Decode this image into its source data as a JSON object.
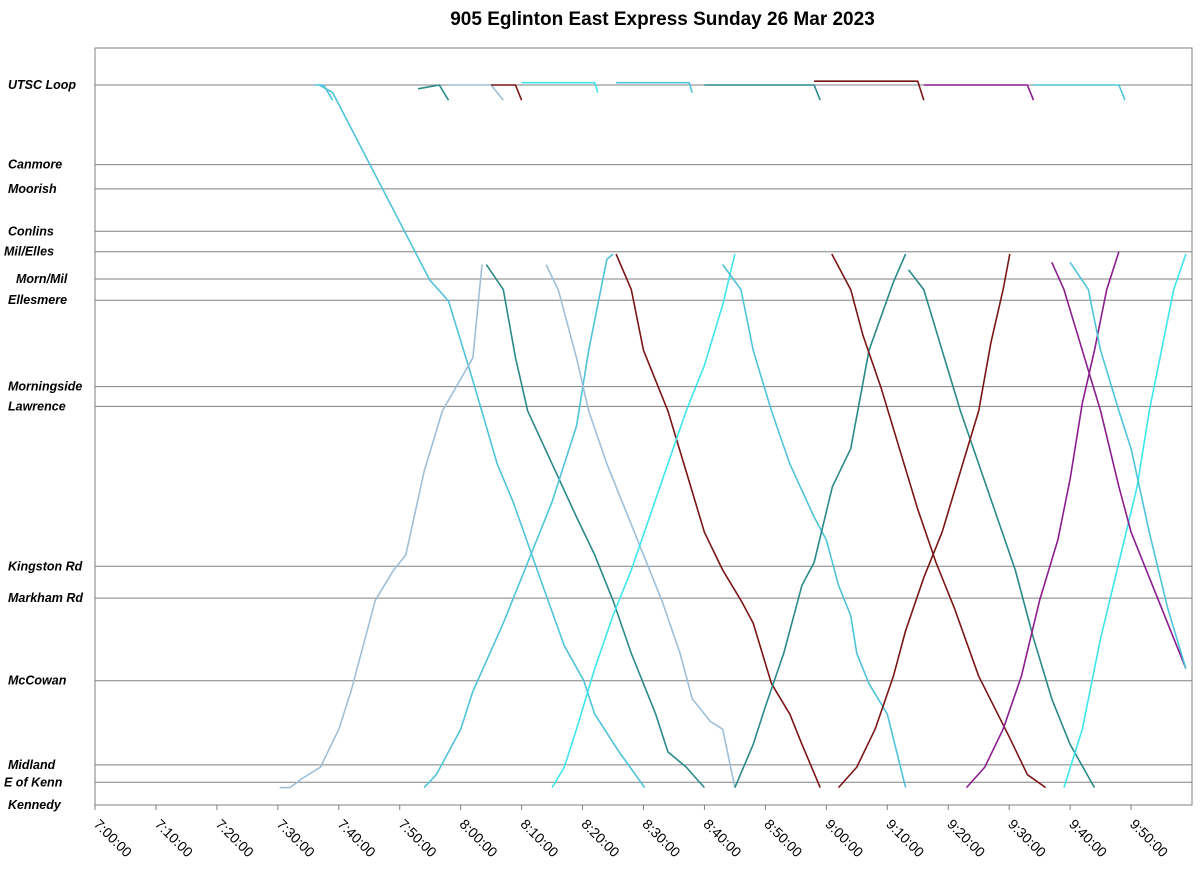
{
  "chart_data": {
    "type": "line",
    "title": "905 Eglinton East Express Sunday 26 Mar 2023",
    "xlabel": "",
    "ylabel": "",
    "x_unit": "time of day (minutes since midnight)",
    "xlim": [
      420,
      600
    ],
    "x_ticks": [
      "7:00:00",
      "7:10:00",
      "7:20:00",
      "7:30:00",
      "7:40:00",
      "7:50:00",
      "8:00:00",
      "8:10:00",
      "8:20:00",
      "8:30:00",
      "8:40:00",
      "8:50:00",
      "9:00:00",
      "9:10:00",
      "9:20:00",
      "9:30:00",
      "9:40:00",
      "9:50:00"
    ],
    "stops": [
      {
        "name": "UTSC Loop",
        "pos": 0.95
      },
      {
        "name": "Canmore",
        "pos": 0.845
      },
      {
        "name": "Moorish",
        "pos": 0.813
      },
      {
        "name": "Conlins",
        "pos": 0.757
      },
      {
        "name": "Mil/Elles",
        "pos": 0.73
      },
      {
        "name": "Morn/Mil",
        "pos": 0.694
      },
      {
        "name": "Ellesmere",
        "pos": 0.666
      },
      {
        "name": "Morningside",
        "pos": 0.552
      },
      {
        "name": "Lawrence",
        "pos": 0.526
      },
      {
        "name": "Kingston Rd",
        "pos": 0.315
      },
      {
        "name": "Markham Rd",
        "pos": 0.273
      },
      {
        "name": "McCowan",
        "pos": 0.164
      },
      {
        "name": "Midland",
        "pos": 0.053
      },
      {
        "name": "E of Kenn",
        "pos": 0.03
      },
      {
        "name": "Kennedy",
        "pos": 0.0
      }
    ],
    "grid": true,
    "legend": "none",
    "series": [
      {
        "color": "#4fc4d9",
        "points": [
          [
            456.8,
            0.95
          ],
          [
            459,
            0.94
          ],
          [
            474.9,
            0.693
          ],
          [
            478,
            0.665
          ],
          [
            482,
            0.56
          ],
          [
            486,
            0.45
          ],
          [
            488.6,
            0.4
          ],
          [
            493,
            0.3
          ],
          [
            497,
            0.21
          ],
          [
            500.2,
            0.164
          ],
          [
            502,
            0.12
          ],
          [
            506,
            0.07
          ],
          [
            510.2,
            0.023
          ]
        ]
      },
      {
        "name": "",
        "color": "#9fbfd8",
        "points": [
          [
            450.3,
            0.023
          ],
          [
            452,
            0.023
          ],
          [
            454,
            0.035
          ],
          [
            457,
            0.05
          ],
          [
            460,
            0.1
          ],
          [
            462,
            0.15
          ],
          [
            466,
            0.27
          ],
          [
            469,
            0.31
          ],
          [
            471,
            0.33
          ],
          [
            474,
            0.44
          ],
          [
            477,
            0.52
          ],
          [
            482,
            0.59
          ],
          [
            483.5,
            0.713
          ]
        ]
      },
      {
        "color": "#2a8a8a",
        "points": [
          [
            484.2,
            0.713
          ],
          [
            487,
            0.68
          ],
          [
            489,
            0.59
          ],
          [
            491,
            0.52
          ],
          [
            495,
            0.45
          ],
          [
            499,
            0.38
          ],
          [
            502,
            0.33
          ],
          [
            505,
            0.27
          ],
          [
            508,
            0.2
          ],
          [
            511,
            0.14
          ],
          [
            512,
            0.12
          ],
          [
            514,
            0.07
          ],
          [
            517,
            0.05
          ],
          [
            520,
            0.023
          ]
        ]
      },
      {
        "color": "#4fc4d9",
        "points": [
          [
            474,
            0.023
          ],
          [
            476,
            0.04
          ],
          [
            480,
            0.1
          ],
          [
            482,
            0.15
          ],
          [
            487,
            0.24
          ],
          [
            489,
            0.28
          ],
          [
            491,
            0.32
          ],
          [
            495,
            0.4
          ],
          [
            497,
            0.45
          ],
          [
            499,
            0.5
          ],
          [
            501,
            0.6
          ],
          [
            503,
            0.68
          ],
          [
            504,
            0.72
          ],
          [
            505,
            0.727
          ]
        ]
      },
      {
        "color": "#9fbfd8",
        "points": [
          [
            494,
            0.713
          ],
          [
            496,
            0.68
          ],
          [
            499,
            0.59
          ],
          [
            501,
            0.52
          ],
          [
            504,
            0.45
          ],
          [
            508,
            0.37
          ],
          [
            511,
            0.31
          ],
          [
            513,
            0.27
          ],
          [
            516,
            0.2
          ],
          [
            518,
            0.14
          ],
          [
            521,
            0.11
          ],
          [
            523,
            0.1
          ],
          [
            525,
            0.023
          ]
        ]
      },
      {
        "color": "#7b1515",
        "points": [
          [
            505.5,
            0.727
          ],
          [
            508,
            0.68
          ],
          [
            510,
            0.6
          ],
          [
            514,
            0.52
          ],
          [
            517,
            0.44
          ],
          [
            520,
            0.36
          ],
          [
            523,
            0.31
          ],
          [
            526,
            0.27
          ],
          [
            528,
            0.24
          ],
          [
            531,
            0.16
          ],
          [
            534,
            0.12
          ],
          [
            536,
            0.08
          ],
          [
            539,
            0.023
          ]
        ]
      },
      {
        "color": "#3ee6ec",
        "points": [
          [
            495,
            0.023
          ],
          [
            497,
            0.05
          ],
          [
            499,
            0.1
          ],
          [
            502,
            0.18
          ],
          [
            505,
            0.25
          ],
          [
            508,
            0.31
          ],
          [
            511,
            0.38
          ],
          [
            514,
            0.45
          ],
          [
            517,
            0.52
          ],
          [
            520,
            0.58
          ],
          [
            523,
            0.66
          ],
          [
            525,
            0.727
          ]
        ]
      },
      {
        "color": "#4fc4d9",
        "points": [
          [
            523,
            0.713
          ],
          [
            526,
            0.68
          ],
          [
            528,
            0.6
          ],
          [
            531,
            0.52
          ],
          [
            534,
            0.45
          ],
          [
            538,
            0.38
          ],
          [
            540,
            0.35
          ],
          [
            542,
            0.29
          ],
          [
            544,
            0.25
          ],
          [
            545,
            0.2
          ],
          [
            547,
            0.16
          ],
          [
            550,
            0.12
          ],
          [
            553,
            0.023
          ]
        ]
      },
      {
        "color": "#2a8a8a",
        "points": [
          [
            525,
            0.023
          ],
          [
            528,
            0.08
          ],
          [
            530,
            0.13
          ],
          [
            533,
            0.2
          ],
          [
            536,
            0.29
          ],
          [
            538,
            0.32
          ],
          [
            541,
            0.42
          ],
          [
            544,
            0.47
          ],
          [
            547,
            0.6
          ],
          [
            551,
            0.69
          ],
          [
            553,
            0.727
          ]
        ]
      },
      {
        "color": "#7b1515",
        "points": [
          [
            540.9,
            0.727
          ],
          [
            544,
            0.68
          ],
          [
            546,
            0.62
          ],
          [
            549,
            0.55
          ],
          [
            552,
            0.47
          ],
          [
            555,
            0.39
          ],
          [
            558,
            0.32
          ],
          [
            561,
            0.26
          ],
          [
            565,
            0.17
          ],
          [
            570,
            0.09
          ],
          [
            573,
            0.04
          ],
          [
            576,
            0.023
          ]
        ]
      },
      {
        "color": "#2a8a8a",
        "points": [
          [
            553.5,
            0.706
          ],
          [
            556,
            0.68
          ],
          [
            559,
            0.6
          ],
          [
            562,
            0.52
          ],
          [
            565,
            0.45
          ],
          [
            568,
            0.38
          ],
          [
            571,
            0.31
          ],
          [
            574,
            0.22
          ],
          [
            577,
            0.14
          ],
          [
            580,
            0.08
          ],
          [
            584,
            0.023
          ]
        ]
      },
      {
        "color": "#7b1515",
        "points": [
          [
            542,
            0.023
          ],
          [
            545,
            0.05
          ],
          [
            548,
            0.1
          ],
          [
            551,
            0.17
          ],
          [
            553,
            0.23
          ],
          [
            556,
            0.3
          ],
          [
            559,
            0.36
          ],
          [
            562,
            0.44
          ],
          [
            565,
            0.52
          ],
          [
            567,
            0.61
          ],
          [
            569,
            0.68
          ],
          [
            570.1,
            0.727
          ]
        ]
      },
      {
        "color": "#8b1d8f",
        "points": [
          [
            563,
            0.023
          ],
          [
            566,
            0.05
          ],
          [
            569,
            0.1
          ],
          [
            572,
            0.17
          ],
          [
            575,
            0.27
          ],
          [
            578,
            0.35
          ],
          [
            580,
            0.43
          ],
          [
            582,
            0.53
          ],
          [
            584,
            0.6
          ],
          [
            586,
            0.68
          ],
          [
            588,
            0.73
          ]
        ]
      },
      {
        "color": "#3ee6ec",
        "points": [
          [
            579,
            0.023
          ],
          [
            582,
            0.1
          ],
          [
            585,
            0.22
          ],
          [
            588,
            0.32
          ],
          [
            591,
            0.42
          ],
          [
            593,
            0.52
          ],
          [
            595,
            0.6
          ],
          [
            597,
            0.68
          ],
          [
            599,
            0.727
          ]
        ]
      },
      {
        "color": "#8b1d8f",
        "points": [
          [
            577,
            0.716
          ],
          [
            579,
            0.68
          ],
          [
            582,
            0.6
          ],
          [
            585,
            0.52
          ],
          [
            588,
            0.42
          ],
          [
            590,
            0.36
          ],
          [
            593,
            0.3
          ],
          [
            596,
            0.24
          ],
          [
            599,
            0.18
          ]
        ]
      },
      {
        "color": "#4fc4d9",
        "points": [
          [
            580,
            0.716
          ],
          [
            583,
            0.68
          ],
          [
            585,
            0.6
          ],
          [
            588,
            0.52
          ],
          [
            590,
            0.47
          ],
          [
            593,
            0.36
          ],
          [
            596,
            0.26
          ],
          [
            599,
            0.18
          ]
        ]
      }
    ],
    "markers": [
      {
        "color": "#4fc4d9",
        "points": [
          [
            456,
            0.95
          ],
          [
            457.5,
            0.95
          ],
          [
            459,
            0.93
          ]
        ]
      },
      {
        "color": "#2a8a8a",
        "points": [
          [
            473,
            0.945
          ],
          [
            476.5,
            0.95
          ],
          [
            478,
            0.93
          ]
        ]
      },
      {
        "color": "#9fbfd8",
        "points": [
          [
            478,
            0.95
          ],
          [
            485,
            0.95
          ],
          [
            487,
            0.93
          ]
        ]
      },
      {
        "color": "#7b1515",
        "points": [
          [
            485,
            0.95
          ],
          [
            489,
            0.95
          ],
          [
            490,
            0.93
          ]
        ]
      },
      {
        "color": "#3ee6ec",
        "points": [
          [
            490,
            0.953
          ],
          [
            502,
            0.953
          ],
          [
            502.5,
            0.94
          ]
        ]
      },
      {
        "color": "#4fc4d9",
        "points": [
          [
            505.5,
            0.953
          ],
          [
            517.5,
            0.953
          ],
          [
            518,
            0.94
          ]
        ]
      },
      {
        "color": "#2a8a8a",
        "points": [
          [
            520,
            0.95
          ],
          [
            538,
            0.95
          ],
          [
            539,
            0.93
          ]
        ]
      },
      {
        "color": "#7b1515",
        "points": [
          [
            538,
            0.955
          ],
          [
            555,
            0.955
          ],
          [
            556,
            0.93
          ]
        ]
      },
      {
        "color": "#8b1d8f",
        "points": [
          [
            556,
            0.95
          ],
          [
            573,
            0.95
          ],
          [
            574,
            0.93
          ]
        ]
      },
      {
        "color": "#4fc4d9",
        "points": [
          [
            574,
            0.95
          ],
          [
            588,
            0.95
          ],
          [
            589,
            0.93
          ]
        ]
      }
    ]
  }
}
